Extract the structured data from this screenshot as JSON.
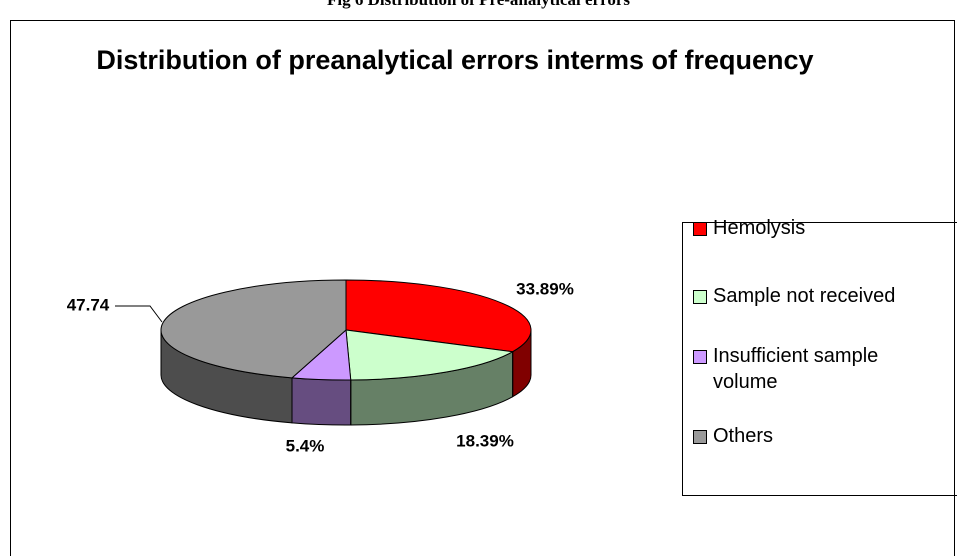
{
  "caption": "Fig 6 Distribution of Pre-analytical errors",
  "chart_data": {
    "type": "pie3d",
    "title": "Distribution of preanalytical errors interms of frequency",
    "categories": [
      "Hemolysis",
      "Sample not received",
      "Insufficient sample volume",
      "Others"
    ],
    "values": [
      33.89,
      18.39,
      5.4,
      47.74
    ],
    "value_labels": [
      "33.89%",
      "18.39%",
      "5.4%",
      "47.74"
    ],
    "colors": [
      "#ff0000",
      "#ccffcc",
      "#cc99ff",
      "#999999"
    ],
    "legend": "right"
  }
}
